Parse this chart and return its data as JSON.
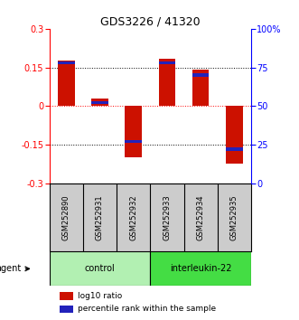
{
  "title": "GDS3226 / 41320",
  "samples": [
    "GSM252890",
    "GSM252931",
    "GSM252932",
    "GSM252933",
    "GSM252934",
    "GSM252935"
  ],
  "log10_ratio": [
    0.175,
    0.03,
    -0.2,
    0.185,
    0.14,
    -0.225
  ],
  "percentile_rank": [
    78,
    52,
    27,
    78,
    70,
    22
  ],
  "groups": [
    {
      "label": "control",
      "indices": [
        0,
        1,
        2
      ],
      "color": "#b2f0b2"
    },
    {
      "label": "interleukin-22",
      "indices": [
        3,
        4,
        5
      ],
      "color": "#44dd44"
    }
  ],
  "group_label": "agent",
  "ylim": [
    -0.3,
    0.3
  ],
  "yticks_left": [
    -0.3,
    -0.15,
    0,
    0.15,
    0.3
  ],
  "yticks_right": [
    0,
    25,
    50,
    75,
    100
  ],
  "bar_width": 0.5,
  "red_color": "#cc1100",
  "blue_color": "#2222bb",
  "bg_color": "#ffffff",
  "plot_bg": "#ffffff",
  "label_log10": "log10 ratio",
  "label_pct": "percentile rank within the sample",
  "sample_label_bg": "#cccccc"
}
